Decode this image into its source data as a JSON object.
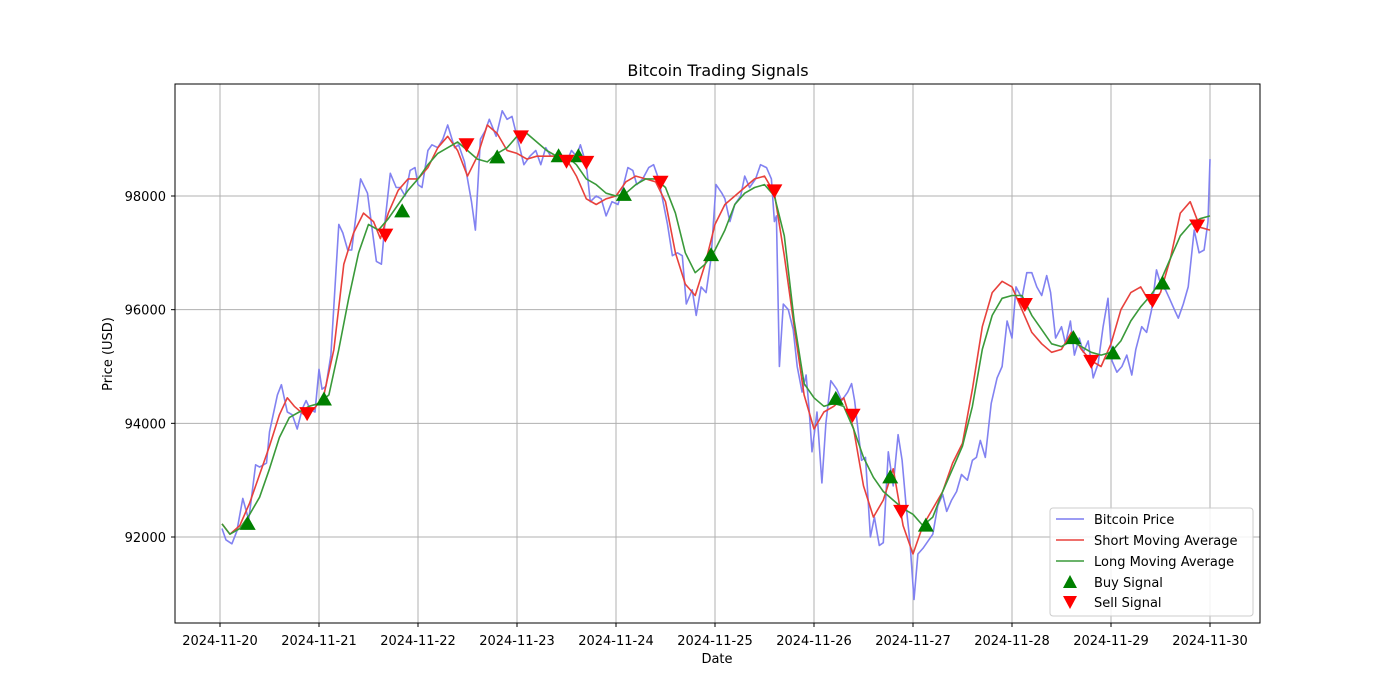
{
  "chart_data": {
    "type": "line",
    "title": "Bitcoin Trading Signals",
    "xlabel": "Date",
    "ylabel": "Price (USD)",
    "x_tick_labels": [
      "2024-11-20",
      "2024-11-21",
      "2024-11-22",
      "2024-11-23",
      "2024-11-24",
      "2024-11-25",
      "2024-11-26",
      "2024-11-27",
      "2024-11-28",
      "2024-11-29",
      "2024-11-30"
    ],
    "y_tick_labels": [
      "92000",
      "94000",
      "96000",
      "98000"
    ],
    "y_ticks": [
      92000,
      94000,
      96000,
      98000
    ],
    "xlim_days": [
      -0.45,
      10.5
    ],
    "ylim": [
      90500,
      99950
    ],
    "grid": true,
    "legend_position": "lower right",
    "legend": [
      "Bitcoin Price",
      "Short Moving Average",
      "Long Moving Average",
      "Buy Signal",
      "Sell Signal"
    ],
    "colors": {
      "price": "#7b7bf0",
      "short_ma": "#e8413c",
      "long_ma": "#3a9a3a",
      "buy": "#008000",
      "sell": "#ff0000",
      "grid": "#b0b0b0"
    },
    "series": [
      {
        "name": "Bitcoin Price",
        "x_days": [
          0.02,
          0.06,
          0.12,
          0.17,
          0.23,
          0.29,
          0.36,
          0.4,
          0.47,
          0.5,
          0.58,
          0.62,
          0.68,
          0.73,
          0.78,
          0.83,
          0.87,
          0.91,
          0.96,
          1.0,
          1.03,
          1.07,
          1.12,
          1.2,
          1.24,
          1.29,
          1.33,
          1.37,
          1.42,
          1.49,
          1.53,
          1.58,
          1.63,
          1.67,
          1.72,
          1.78,
          1.82,
          1.87,
          1.92,
          1.97,
          2.0,
          2.04,
          2.1,
          2.14,
          2.2,
          2.25,
          2.3,
          2.37,
          2.41,
          2.47,
          2.54,
          2.58,
          2.63,
          2.68,
          2.72,
          2.79,
          2.85,
          2.9,
          2.95,
          3.02,
          3.07,
          3.13,
          3.19,
          3.24,
          3.29,
          3.34,
          3.39,
          3.44,
          3.5,
          3.55,
          3.6,
          3.64,
          3.7,
          3.74,
          3.8,
          3.85,
          3.9,
          3.96,
          4.02,
          4.07,
          4.12,
          4.17,
          4.21,
          4.27,
          4.33,
          4.38,
          4.43,
          4.47,
          4.52,
          4.57,
          4.62,
          4.67,
          4.71,
          4.77,
          4.81,
          4.86,
          4.91,
          4.96,
          5.01,
          5.07,
          5.1,
          5.15,
          5.2,
          5.26,
          5.3,
          5.35,
          5.41,
          5.46,
          5.52,
          5.57,
          5.6,
          5.62,
          5.65,
          5.69,
          5.74,
          5.79,
          5.83,
          5.88,
          5.92,
          5.95,
          5.98,
          6.03,
          6.08,
          6.12,
          6.17,
          6.23,
          6.28,
          6.34,
          6.38,
          6.41,
          6.45,
          6.48,
          6.52,
          6.57,
          6.61,
          6.66,
          6.7,
          6.75,
          6.8,
          6.85,
          6.89,
          6.93,
          6.97,
          7.01,
          7.05,
          7.1,
          7.14,
          7.2,
          7.25,
          7.3,
          7.34,
          7.39,
          7.44,
          7.49,
          7.55,
          7.6,
          7.64,
          7.68,
          7.73,
          7.79,
          7.85,
          7.9,
          7.95,
          8.0,
          8.04,
          8.1,
          8.15,
          8.2,
          8.25,
          8.3,
          8.35,
          8.39,
          8.44,
          8.5,
          8.54,
          8.59,
          8.63,
          8.68,
          8.72,
          8.77,
          8.82,
          8.87,
          8.92,
          8.97,
          9.01,
          9.06,
          9.11,
          9.16,
          9.21,
          9.25,
          9.31,
          9.36,
          9.41,
          9.46,
          9.51,
          9.55,
          9.59,
          9.64,
          9.68,
          9.73,
          9.78,
          9.84,
          9.89,
          9.94,
          9.98,
          10.0
        ],
        "values": [
          92150,
          91950,
          91880,
          92100,
          92680,
          92300,
          93270,
          93230,
          93300,
          93850,
          94500,
          94680,
          94200,
          94150,
          93900,
          94250,
          94400,
          94250,
          94200,
          94950,
          94600,
          94650,
          95200,
          97500,
          97350,
          97050,
          97050,
          97600,
          98300,
          98050,
          97500,
          96850,
          96800,
          97600,
          98400,
          98150,
          98150,
          98000,
          98450,
          98500,
          98200,
          98150,
          98800,
          98900,
          98850,
          99000,
          99250,
          98850,
          98900,
          98600,
          97900,
          97400,
          99000,
          99150,
          99350,
          99050,
          99500,
          99350,
          99400,
          98900,
          98550,
          98700,
          98800,
          98550,
          98850,
          98700,
          98700,
          98650,
          98600,
          98800,
          98700,
          98900,
          98550,
          97900,
          98000,
          97950,
          97650,
          97900,
          97850,
          98150,
          98500,
          98450,
          98200,
          98300,
          98500,
          98550,
          98300,
          97950,
          97500,
          96950,
          97000,
          96950,
          96100,
          96350,
          95900,
          96400,
          96300,
          96900,
          98200,
          98050,
          97950,
          97550,
          97850,
          98000,
          98350,
          98150,
          98300,
          98550,
          98500,
          98300,
          97550,
          97650,
          95000,
          96100,
          96000,
          95650,
          95000,
          94550,
          94850,
          94250,
          93500,
          94200,
          92950,
          94000,
          94750,
          94600,
          94400,
          94550,
          94700,
          94400,
          93800,
          93350,
          93400,
          92000,
          92350,
          91850,
          91900,
          93500,
          92900,
          93800,
          93350,
          92550,
          91900,
          90900,
          91700,
          91800,
          91900,
          92050,
          92550,
          92750,
          92450,
          92650,
          92800,
          93100,
          93000,
          93350,
          93400,
          93700,
          93400,
          94350,
          94800,
          95000,
          95800,
          95500,
          96400,
          96200,
          96650,
          96650,
          96400,
          96250,
          96600,
          96300,
          95500,
          95700,
          95400,
          95800,
          95200,
          95500,
          95250,
          95450,
          94800,
          95050,
          95700,
          96200,
          95100,
          94900,
          95000,
          95200,
          94850,
          95300,
          95700,
          95600,
          96000,
          96700,
          96400,
          96350,
          96200,
          96000,
          95850,
          96100,
          96400,
          97400,
          97000,
          97050,
          97550,
          98650,
          98000,
          97450,
          97400,
          97550,
          97250,
          97350
        ]
      },
      {
        "name": "Short Moving Average",
        "x_days": [
          0.02,
          0.1,
          0.2,
          0.3,
          0.4,
          0.5,
          0.6,
          0.68,
          0.75,
          0.85,
          0.95,
          1.05,
          1.15,
          1.25,
          1.35,
          1.45,
          1.55,
          1.62,
          1.7,
          1.8,
          1.9,
          2.0,
          2.1,
          2.2,
          2.3,
          2.4,
          2.5,
          2.6,
          2.7,
          2.8,
          2.9,
          3.0,
          3.1,
          3.2,
          3.3,
          3.4,
          3.5,
          3.6,
          3.7,
          3.8,
          3.9,
          4.0,
          4.1,
          4.2,
          4.3,
          4.4,
          4.5,
          4.6,
          4.7,
          4.8,
          4.9,
          5.0,
          5.1,
          5.2,
          5.3,
          5.4,
          5.5,
          5.6,
          5.7,
          5.8,
          5.9,
          6.0,
          6.1,
          6.2,
          6.3,
          6.4,
          6.5,
          6.6,
          6.7,
          6.8,
          6.9,
          7.0,
          7.1,
          7.2,
          7.3,
          7.4,
          7.5,
          7.6,
          7.7,
          7.8,
          7.9,
          8.0,
          8.1,
          8.2,
          8.3,
          8.4,
          8.5,
          8.6,
          8.7,
          8.8,
          8.9,
          9.0,
          9.1,
          9.2,
          9.3,
          9.4,
          9.5,
          9.6,
          9.7,
          9.8,
          9.9,
          10.0
        ],
        "values": [
          92230,
          92050,
          92200,
          92600,
          93100,
          93600,
          94150,
          94450,
          94300,
          94150,
          94250,
          94500,
          95300,
          96800,
          97350,
          97700,
          97550,
          97250,
          97700,
          98100,
          98300,
          98300,
          98500,
          98850,
          99050,
          98800,
          98350,
          98700,
          99250,
          99100,
          98800,
          98750,
          98650,
          98700,
          98700,
          98700,
          98650,
          98350,
          97950,
          97850,
          97950,
          98000,
          98250,
          98350,
          98300,
          98250,
          97900,
          97000,
          96450,
          96250,
          96800,
          97500,
          97850,
          98000,
          98150,
          98300,
          98350,
          98050,
          96950,
          95700,
          94500,
          93900,
          94200,
          94300,
          94450,
          93900,
          92900,
          92350,
          92650,
          93200,
          92200,
          91700,
          92200,
          92500,
          92800,
          93300,
          93650,
          94600,
          95700,
          96300,
          96500,
          96400,
          96000,
          95600,
          95400,
          95250,
          95300,
          95600,
          95300,
          95100,
          95000,
          95400,
          96000,
          96300,
          96400,
          96100,
          96300,
          96900,
          97700,
          97900,
          97450,
          97400
        ]
      },
      {
        "name": "Long Moving Average",
        "x_days": [
          0.02,
          0.1,
          0.2,
          0.3,
          0.4,
          0.5,
          0.6,
          0.7,
          0.8,
          0.9,
          1.0,
          1.1,
          1.2,
          1.3,
          1.4,
          1.5,
          1.6,
          1.7,
          1.8,
          1.9,
          2.0,
          2.1,
          2.2,
          2.3,
          2.4,
          2.5,
          2.6,
          2.7,
          2.8,
          2.9,
          3.0,
          3.1,
          3.2,
          3.3,
          3.4,
          3.5,
          3.6,
          3.7,
          3.8,
          3.9,
          4.0,
          4.1,
          4.2,
          4.3,
          4.4,
          4.5,
          4.6,
          4.7,
          4.8,
          4.9,
          5.0,
          5.1,
          5.2,
          5.3,
          5.4,
          5.5,
          5.6,
          5.7,
          5.8,
          5.9,
          6.0,
          6.1,
          6.2,
          6.3,
          6.4,
          6.5,
          6.6,
          6.7,
          6.8,
          6.9,
          7.0,
          7.1,
          7.2,
          7.3,
          7.4,
          7.5,
          7.6,
          7.7,
          7.8,
          7.9,
          8.0,
          8.1,
          8.2,
          8.3,
          8.4,
          8.5,
          8.6,
          8.7,
          8.8,
          8.9,
          9.0,
          9.1,
          9.2,
          9.3,
          9.4,
          9.5,
          9.6,
          9.7,
          9.8,
          9.9,
          10.0
        ],
        "values": [
          92230,
          92050,
          92150,
          92400,
          92700,
          93200,
          93750,
          94100,
          94200,
          94300,
          94350,
          94500,
          95300,
          96200,
          97000,
          97500,
          97400,
          97600,
          97850,
          98100,
          98300,
          98550,
          98750,
          98850,
          98950,
          98800,
          98650,
          98600,
          98750,
          98850,
          99050,
          99100,
          98950,
          98800,
          98700,
          98700,
          98550,
          98300,
          98200,
          98050,
          98000,
          98050,
          98200,
          98300,
          98300,
          98150,
          97700,
          97000,
          96650,
          96800,
          97050,
          97400,
          97850,
          98050,
          98150,
          98200,
          98000,
          97300,
          95800,
          94700,
          94450,
          94300,
          94350,
          94300,
          93900,
          93400,
          93050,
          92800,
          92650,
          92500,
          92400,
          92200,
          92350,
          92800,
          93200,
          93600,
          94300,
          95300,
          95900,
          96200,
          96250,
          96250,
          95900,
          95650,
          95400,
          95350,
          95450,
          95350,
          95250,
          95200,
          95250,
          95450,
          95800,
          96050,
          96250,
          96500,
          96900,
          97300,
          97500,
          97600,
          97650
        ]
      }
    ],
    "buy_signals": [
      {
        "x_day": 0.28,
        "value": 92230
      },
      {
        "x_day": 1.05,
        "value": 94420
      },
      {
        "x_day": 1.84,
        "value": 97730
      },
      {
        "x_day": 2.8,
        "value": 98680
      },
      {
        "x_day": 3.42,
        "value": 98700
      },
      {
        "x_day": 3.62,
        "value": 98700
      },
      {
        "x_day": 4.08,
        "value": 98020
      },
      {
        "x_day": 4.96,
        "value": 96960
      },
      {
        "x_day": 6.22,
        "value": 94430
      },
      {
        "x_day": 6.77,
        "value": 93050
      },
      {
        "x_day": 7.13,
        "value": 92200
      },
      {
        "x_day": 8.62,
        "value": 95500
      },
      {
        "x_day": 9.02,
        "value": 95230
      },
      {
        "x_day": 9.52,
        "value": 96460
      }
    ],
    "sell_signals": [
      {
        "x_day": 0.88,
        "value": 94180
      },
      {
        "x_day": 1.67,
        "value": 97320
      },
      {
        "x_day": 2.49,
        "value": 98910
      },
      {
        "x_day": 3.04,
        "value": 99050
      },
      {
        "x_day": 3.5,
        "value": 98620
      },
      {
        "x_day": 3.7,
        "value": 98600
      },
      {
        "x_day": 4.45,
        "value": 98250
      },
      {
        "x_day": 5.6,
        "value": 98100
      },
      {
        "x_day": 6.39,
        "value": 94150
      },
      {
        "x_day": 6.88,
        "value": 92460
      },
      {
        "x_day": 8.13,
        "value": 96100
      },
      {
        "x_day": 8.8,
        "value": 95100
      },
      {
        "x_day": 9.42,
        "value": 96170
      },
      {
        "x_day": 9.87,
        "value": 97480
      }
    ]
  }
}
